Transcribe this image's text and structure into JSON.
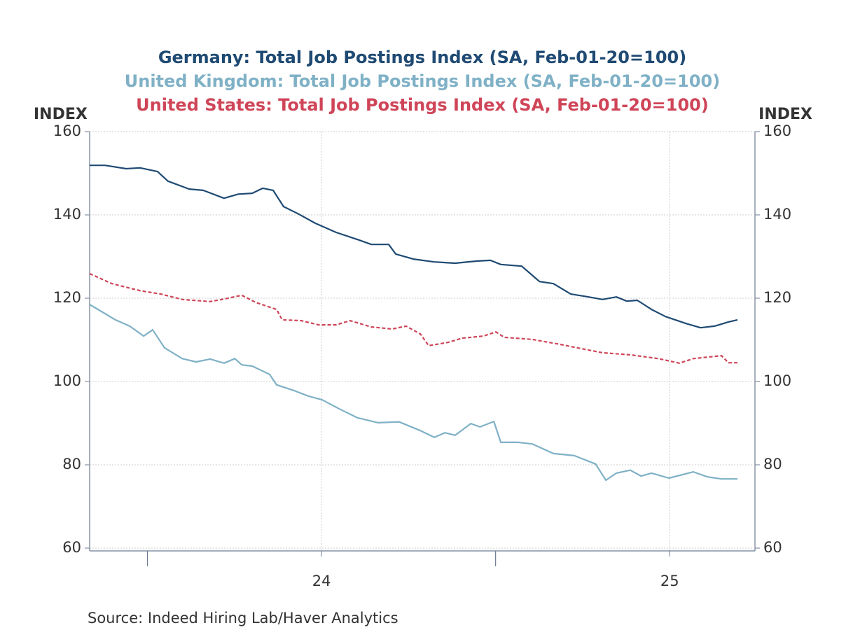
{
  "chart_data": {
    "type": "line",
    "titles": [
      {
        "text": "Germany: Total Job Postings Index (SA, Feb-01-20=100)",
        "color": "#1f4a73"
      },
      {
        "text": "United Kingdom: Total Job Postings Index (SA, Feb-01-20=100)",
        "color": "#7fb1c6"
      },
      {
        "text": "United States: Total Job Postings Index (SA, Feb-01-20=100)",
        "color": "#cf4558"
      }
    ],
    "ylabel": "INDEX",
    "y2label": "INDEX",
    "source": "Source:  Indeed Hiring Lab/Haver Analytics",
    "xlim": [
      23.334,
      25.245
    ],
    "xticks": [
      24,
      25
    ],
    "x_major_ticks": [
      23.5,
      24.5
    ],
    "ylim": [
      60,
      160
    ],
    "yticks": [
      60,
      80,
      100,
      120,
      140,
      160
    ],
    "y2lim": [
      60,
      160
    ],
    "y2ticks": [
      60,
      80,
      100,
      120,
      140,
      160
    ],
    "grid": true,
    "series": [
      {
        "name": "Germany",
        "color": "#1f4a73",
        "dash": false,
        "x": [
          23.334,
          23.378,
          23.439,
          23.479,
          23.529,
          23.559,
          23.62,
          23.66,
          23.72,
          23.761,
          23.801,
          23.831,
          23.861,
          23.891,
          23.932,
          23.982,
          24.042,
          24.103,
          24.143,
          24.193,
          24.213,
          24.264,
          24.324,
          24.384,
          24.445,
          24.485,
          24.515,
          24.575,
          24.626,
          24.666,
          24.716,
          24.767,
          24.807,
          24.847,
          24.877,
          24.907,
          24.948,
          24.988,
          25.048,
          25.089,
          25.129,
          25.169,
          25.195
        ],
        "values": [
          151.9,
          151.9,
          151.1,
          151.3,
          150.4,
          148.1,
          146.2,
          145.9,
          144.0,
          145.0,
          145.2,
          146.4,
          145.9,
          142.0,
          140.3,
          138.0,
          135.8,
          134.1,
          132.9,
          132.9,
          130.6,
          129.4,
          128.7,
          128.4,
          128.9,
          129.1,
          128.1,
          127.7,
          124.0,
          123.5,
          121.0,
          120.3,
          119.7,
          120.3,
          119.3,
          119.5,
          117.3,
          115.6,
          113.9,
          112.9,
          113.3,
          114.3,
          114.8
        ]
      },
      {
        "name": "United Kingdom",
        "color": "#7fb1c6",
        "dash": false,
        "x": [
          23.334,
          23.378,
          23.408,
          23.449,
          23.489,
          23.515,
          23.549,
          23.6,
          23.64,
          23.68,
          23.72,
          23.751,
          23.771,
          23.801,
          23.851,
          23.871,
          23.922,
          23.962,
          24.002,
          24.052,
          24.103,
          24.163,
          24.223,
          24.284,
          24.324,
          24.354,
          24.384,
          24.429,
          24.455,
          24.495,
          24.515,
          24.565,
          24.606,
          24.666,
          24.726,
          24.787,
          24.817,
          24.847,
          24.887,
          24.918,
          24.948,
          24.998,
          25.068,
          25.109,
          25.149,
          25.195
        ],
        "values": [
          118.5,
          116.3,
          114.8,
          113.3,
          110.9,
          112.4,
          108.1,
          105.5,
          104.7,
          105.4,
          104.4,
          105.5,
          104.0,
          103.7,
          101.7,
          99.2,
          97.8,
          96.5,
          95.6,
          93.4,
          91.3,
          90.1,
          90.3,
          88.2,
          86.6,
          87.7,
          87.1,
          89.9,
          89.1,
          90.4,
          85.4,
          85.4,
          85.0,
          82.7,
          82.2,
          80.2,
          76.3,
          78.0,
          78.7,
          77.3,
          78.0,
          76.8,
          78.3,
          77.1,
          76.6,
          76.6
        ]
      },
      {
        "name": "United States",
        "color": "#cf4558",
        "dash": true,
        "x": [
          23.334,
          23.398,
          23.479,
          23.539,
          23.6,
          23.68,
          23.72,
          23.771,
          23.811,
          23.871,
          23.887,
          23.942,
          23.992,
          24.042,
          24.082,
          24.143,
          24.203,
          24.243,
          24.284,
          24.308,
          24.364,
          24.404,
          24.465,
          24.501,
          24.525,
          24.606,
          24.686,
          24.746,
          24.807,
          24.887,
          24.968,
          25.028,
          25.068,
          25.149,
          25.169,
          25.195
        ],
        "values": [
          125.9,
          123.5,
          121.8,
          121.0,
          119.7,
          119.2,
          119.8,
          120.7,
          119.0,
          117.3,
          114.8,
          114.6,
          113.6,
          113.6,
          114.6,
          113.1,
          112.6,
          113.3,
          111.4,
          108.6,
          109.4,
          110.4,
          110.9,
          111.9,
          110.6,
          110.1,
          108.9,
          107.9,
          106.9,
          106.4,
          105.5,
          104.4,
          105.5,
          106.2,
          104.5,
          104.5
        ]
      }
    ]
  }
}
